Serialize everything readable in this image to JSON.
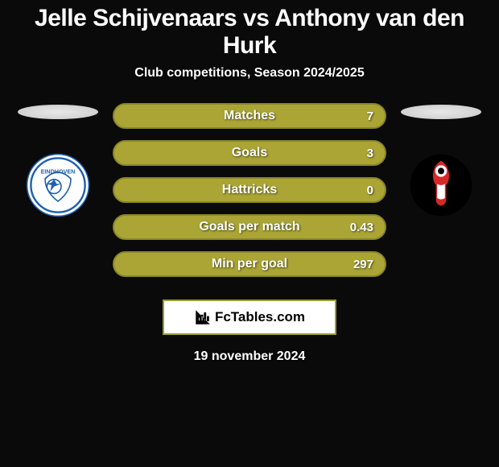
{
  "title": "Jelle Schijvenaars vs Anthony van den Hurk",
  "subtitle": "Club competitions, Season 2024/2025",
  "date": "19 november 2024",
  "brand": {
    "text": "FcTables.com"
  },
  "colors": {
    "bar_fill": "#aaa535",
    "bar_border": "#8a8628",
    "background": "#0a0a0a"
  },
  "stats": [
    {
      "label": "Matches",
      "value": "7",
      "fill_pct": 100
    },
    {
      "label": "Goals",
      "value": "3",
      "fill_pct": 100
    },
    {
      "label": "Hattricks",
      "value": "0",
      "fill_pct": 100
    },
    {
      "label": "Goals per match",
      "value": "0.43",
      "fill_pct": 100
    },
    {
      "label": "Min per goal",
      "value": "297",
      "fill_pct": 100
    }
  ],
  "left_club": {
    "name": "FC Eindhoven",
    "badge_bg": "#ffffff",
    "accent": "#1f5fad"
  },
  "right_club": {
    "name": "Helmond Sport",
    "badge_bg": "#000000",
    "accent": "#d62828"
  }
}
